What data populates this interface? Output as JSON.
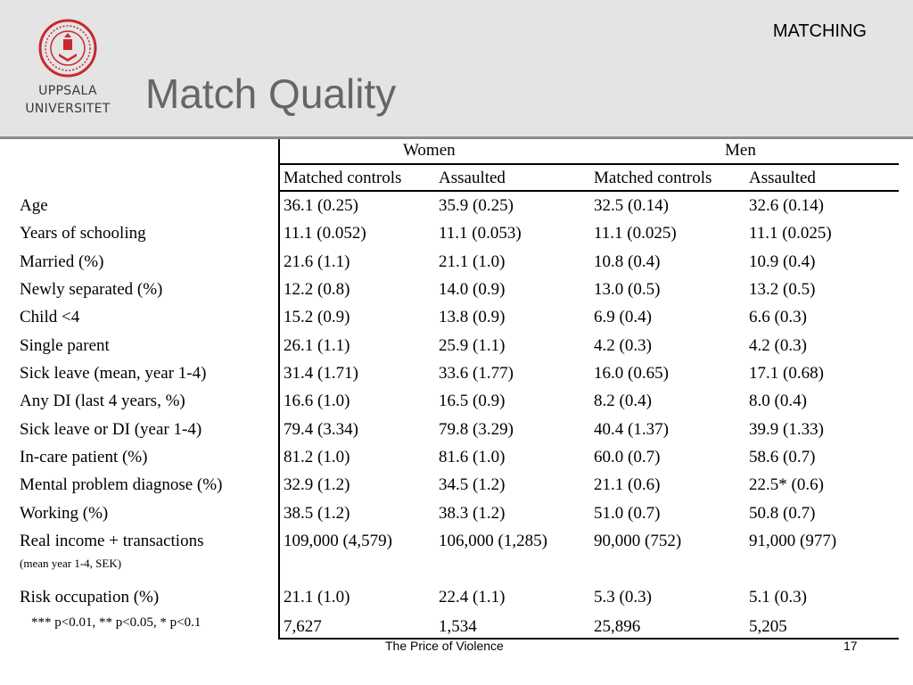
{
  "header": {
    "section": "MATCHING",
    "title": "Match Quality",
    "logo_lines": [
      "UPPSALA",
      "UNIVERSITET"
    ]
  },
  "table": {
    "groups": [
      "Women",
      "Men"
    ],
    "columns": [
      "Matched controls",
      "Assaulted",
      "Matched controls",
      "Assaulted"
    ],
    "rows": [
      {
        "label": "Age",
        "values": [
          "36.1 (0.25)",
          "35.9 (0.25)",
          "32.5 (0.14)",
          "32.6 (0.14)"
        ]
      },
      {
        "label": "Years of schooling",
        "values": [
          "11.1 (0.052)",
          "11.1 (0.053)",
          "11.1 (0.025)",
          "11.1 (0.025)"
        ]
      },
      {
        "label": "Married (%)",
        "values": [
          "21.6 (1.1)",
          "21.1 (1.0)",
          "10.8 (0.4)",
          "10.9 (0.4)"
        ]
      },
      {
        "label": "Newly separated (%)",
        "values": [
          "12.2 (0.8)",
          "14.0 (0.9)",
          "13.0 (0.5)",
          "13.2 (0.5)"
        ]
      },
      {
        "label": "Child <4",
        "values": [
          "15.2 (0.9)",
          "13.8 (0.9)",
          "6.9 (0.4)",
          "6.6 (0.3)"
        ]
      },
      {
        "label": "Single parent",
        "values": [
          "26.1 (1.1)",
          "25.9 (1.1)",
          "4.2 (0.3)",
          "4.2 (0.3)"
        ]
      },
      {
        "label": "Sick leave (mean, year 1-4)",
        "values": [
          "31.4 (1.71)",
          "33.6 (1.77)",
          "16.0 (0.65)",
          "17.1 (0.68)"
        ]
      },
      {
        "label": "Any DI (last 4 years, %)",
        "values": [
          "16.6 (1.0)",
          "16.5 (0.9)",
          "8.2 (0.4)",
          "8.0 (0.4)"
        ]
      },
      {
        "label": "Sick leave or DI (year 1-4)",
        "values": [
          "79.4 (3.34)",
          "79.8 (3.29)",
          "40.4 (1.37)",
          "39.9 (1.33)"
        ]
      },
      {
        "label": "In-care patient (%)",
        "values": [
          "81.2 (1.0)",
          "81.6 (1.0)",
          "60.0 (0.7)",
          "58.6 (0.7)"
        ]
      },
      {
        "label": " Mental problem diagnose (%)",
        "values": [
          "32.9 (1.2)",
          "34.5 (1.2)",
          "21.1 (0.6)",
          "22.5* (0.6)"
        ]
      },
      {
        "label": "Working (%)",
        "values": [
          "38.5 (1.2)",
          "38.3 (1.2)",
          "51.0 (0.7)",
          "50.8 (0.7)"
        ]
      },
      {
        "label": "Real income + transactions",
        "sublabel": "(mean year 1-4, SEK)",
        "values": [
          "109,000 (4,579)",
          "106,000 (1,285)",
          "90,000 (752)",
          "91,000 (977)"
        ]
      },
      {
        "label": "Risk occupation (%)",
        "values": [
          "21.1 (1.0)",
          "22.4 (1.1)",
          "5.3 (0.3)",
          "5.1 (0.3)"
        ]
      }
    ],
    "footnote": "*** p<0.01, ** p<0.05, * p<0.1",
    "counts": [
      "7,627",
      "1,534",
      "25,896",
      "5,205"
    ]
  },
  "footer": {
    "text": "The Price of Violence",
    "page": "17"
  },
  "colors": {
    "header_bg": "#e4e4e4",
    "title": "#666666",
    "logo_red": "#c8282f"
  },
  "icons": [
    "uppsala-seal-logo"
  ]
}
